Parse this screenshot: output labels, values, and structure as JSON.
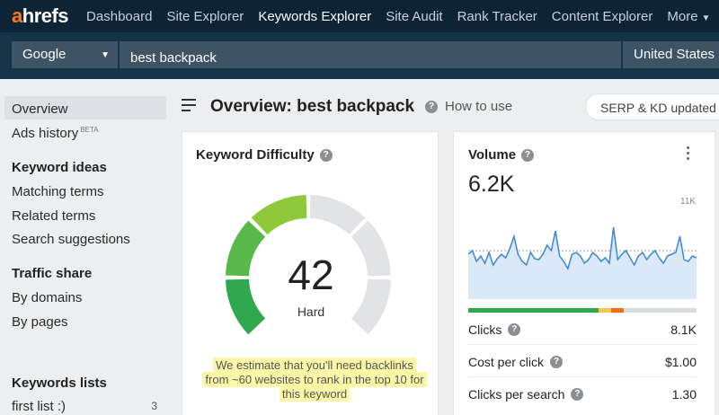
{
  "logo": {
    "first": "a",
    "rest": "hrefs"
  },
  "nav": {
    "items": [
      "Dashboard",
      "Site Explorer",
      "Keywords Explorer",
      "Site Audit",
      "Rank Tracker",
      "Content Explorer"
    ],
    "more": "More",
    "active_index": 2
  },
  "search": {
    "engine": "Google",
    "keyword": "best backpack",
    "country": "United States"
  },
  "sidebar": {
    "overview": "Overview",
    "ads_history": "Ads history",
    "ads_history_badge": "BETA",
    "keyword_ideas_heading": "Keyword ideas",
    "matching_terms": "Matching terms",
    "related_terms": "Related terms",
    "search_suggestions": "Search suggestions",
    "traffic_share_heading": "Traffic share",
    "by_domains": "By domains",
    "by_pages": "By pages",
    "keywords_lists_heading": "Keywords lists",
    "first_list": "first list :)",
    "first_list_count": "3"
  },
  "header": {
    "title": "Overview: best backpack",
    "how_to_use": "How to use",
    "serp_status": "SERP & KD updated"
  },
  "kd_card": {
    "title": "Keyword Difficulty",
    "value": "42",
    "label": "Hard",
    "note": "We estimate that you'll need backlinks from ~60 websites to rank in the top 10 for this keyword"
  },
  "volume_card": {
    "title": "Volume",
    "value": "6.2K",
    "axis_max": "11K",
    "split_colors": [
      "#2fa84f",
      "#f3c94f",
      "#ff6a1a",
      "#d8dbde"
    ],
    "split_fractions": [
      0.57,
      0.055,
      0.055,
      0.32
    ],
    "metrics": [
      {
        "label": "Clicks",
        "value": "8.1K"
      },
      {
        "label": "Cost per click",
        "value": "$1.00"
      },
      {
        "label": "Clicks per search",
        "value": "1.30"
      }
    ]
  },
  "colors": {
    "nav_bg": "#0d2436",
    "accent": "#ff7a1a",
    "kd_fill": [
      "#2fa84f",
      "#58b94a",
      "#8ec93b",
      "#c7cf2c"
    ],
    "kd_empty": "#e2e3e5",
    "line": "#3d86d6"
  }
}
